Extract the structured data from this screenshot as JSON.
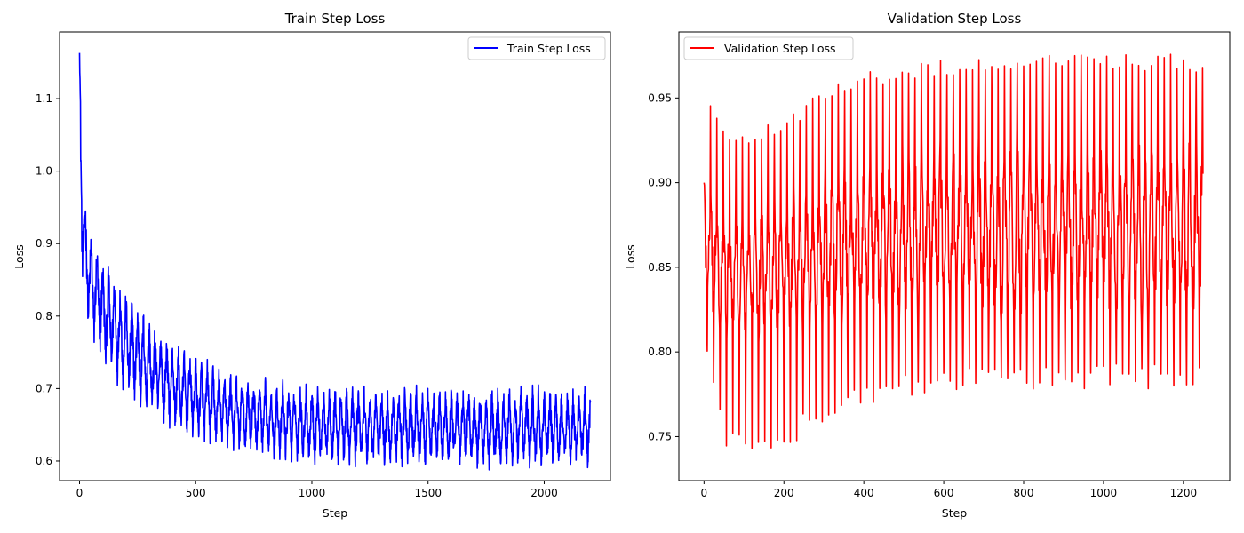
{
  "chart_data": [
    {
      "type": "line",
      "title": "Train Step Loss",
      "xlabel": "Step",
      "ylabel": "Loss",
      "xlim": [
        -86,
        2285
      ],
      "ylim": [
        0.573,
        1.192
      ],
      "xticks": [
        0,
        500,
        1000,
        1500,
        2000
      ],
      "xtick_labels": [
        "0",
        "500",
        "1000",
        "1500",
        "2000"
      ],
      "yticks": [
        0.6,
        0.7,
        0.8,
        0.9,
        1.0,
        1.1
      ],
      "ytick_labels": [
        "0.6",
        "0.7",
        "0.8",
        "0.9",
        "1.0",
        "1.1"
      ],
      "legend_position": "upper right",
      "grid": false,
      "series": [
        {
          "name": "Train Step Loss",
          "color": "#0000ff",
          "n_steps": 2200,
          "period": 25,
          "x": [
            0,
            5,
            10,
            20,
            40,
            60,
            80,
            100,
            150,
            200,
            300,
            400,
            500,
            600,
            700,
            800,
            900,
            1000,
            1200,
            1400,
            1600,
            1800,
            2000,
            2200
          ],
          "upper": [
            1.163,
            1.1,
            1.03,
            0.96,
            0.91,
            0.895,
            0.88,
            0.865,
            0.84,
            0.82,
            0.78,
            0.75,
            0.73,
            0.715,
            0.705,
            0.698,
            0.694,
            0.692,
            0.69,
            0.689,
            0.688,
            0.688,
            0.688,
            0.688
          ],
          "mid": [
            1.16,
            1.02,
            0.95,
            0.9,
            0.855,
            0.835,
            0.815,
            0.8,
            0.775,
            0.755,
            0.725,
            0.703,
            0.688,
            0.678,
            0.671,
            0.666,
            0.663,
            0.66,
            0.657,
            0.655,
            0.654,
            0.653,
            0.653,
            0.653
          ],
          "lower": [
            1.14,
            0.95,
            0.89,
            0.84,
            0.8,
            0.78,
            0.765,
            0.75,
            0.73,
            0.71,
            0.68,
            0.66,
            0.645,
            0.635,
            0.625,
            0.618,
            0.614,
            0.61,
            0.607,
            0.605,
            0.604,
            0.603,
            0.603,
            0.603
          ]
        }
      ]
    },
    {
      "type": "line",
      "title": "Validation Step Loss",
      "xlabel": "Step",
      "ylabel": "Loss",
      "xlim": [
        -63,
        1316
      ],
      "ylim": [
        0.724,
        0.989
      ],
      "xticks": [
        0,
        200,
        400,
        600,
        800,
        1000,
        1200
      ],
      "xtick_labels": [
        "0",
        "200",
        "400",
        "600",
        "800",
        "1000",
        "1200"
      ],
      "yticks": [
        0.75,
        0.8,
        0.85,
        0.9,
        0.95
      ],
      "ytick_labels": [
        "0.75",
        "0.80",
        "0.85",
        "0.90",
        "0.95"
      ],
      "legend_position": "upper left",
      "grid": false,
      "series": [
        {
          "name": "Validation Step Loss",
          "color": "#ff0000",
          "n_steps": 1250,
          "period": 16,
          "x": [
            0,
            50,
            100,
            150,
            200,
            300,
            400,
            500,
            600,
            700,
            800,
            900,
            1000,
            1100,
            1200,
            1250
          ],
          "upper": [
            0.9,
            0.885,
            0.88,
            0.885,
            0.89,
            0.9,
            0.91,
            0.915,
            0.92,
            0.922,
            0.924,
            0.925,
            0.925,
            0.925,
            0.926,
            0.926
          ],
          "mid": [
            0.86,
            0.855,
            0.852,
            0.855,
            0.858,
            0.862,
            0.866,
            0.868,
            0.87,
            0.871,
            0.872,
            0.873,
            0.873,
            0.873,
            0.874,
            0.874
          ],
          "lower": [
            0.82,
            0.815,
            0.81,
            0.81,
            0.812,
            0.815,
            0.818,
            0.82,
            0.82,
            0.82,
            0.82,
            0.82,
            0.82,
            0.82,
            0.82,
            0.82
          ],
          "spike_max": [
            0.958,
            0.93,
            0.928,
            0.935,
            0.94,
            0.955,
            0.965,
            0.97,
            0.973,
            0.975,
            0.976,
            0.976,
            0.976,
            0.976,
            0.976,
            0.975
          ],
          "spike_min": [
            0.81,
            0.742,
            0.737,
            0.74,
            0.744,
            0.755,
            0.765,
            0.772,
            0.775,
            0.777,
            0.778,
            0.778,
            0.778,
            0.778,
            0.778,
            0.776
          ]
        }
      ]
    }
  ]
}
